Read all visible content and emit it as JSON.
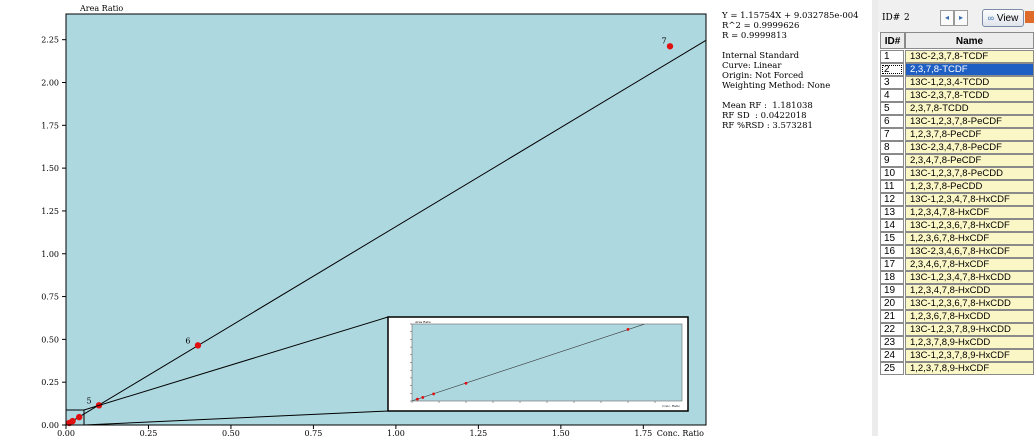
{
  "chart_data": {
    "type": "scatter",
    "ylabel": "Area Ratio",
    "xlabel": "Conc. Ratio",
    "xlim": [
      0,
      1.94
    ],
    "ylim": [
      0,
      2.4
    ],
    "xticks": [
      "0.00",
      "0.25",
      "0.50",
      "0.75",
      "1.00",
      "1.25",
      "1.50",
      "1.75"
    ],
    "yticks": [
      "0.00",
      "0.25",
      "0.50",
      "0.75",
      "1.00",
      "1.25",
      "1.50",
      "1.75",
      "2.00",
      "2.25"
    ],
    "grid": false,
    "background": "#add8e0",
    "fit_line": {
      "slope": 1.157542,
      "intercept": 0.0009032785,
      "color": "#000000"
    },
    "points": [
      {
        "label": "",
        "x": 0.01,
        "y": 0.012
      },
      {
        "label": "",
        "x": 0.02,
        "y": 0.023
      },
      {
        "label": "",
        "x": 0.04,
        "y": 0.046
      },
      {
        "label": "5",
        "x": 0.1,
        "y": 0.115
      },
      {
        "label": "6",
        "x": 0.4,
        "y": 0.465
      },
      {
        "label": "7",
        "x": 2.0,
        "y": 2.32
      }
    ],
    "point_color": "#e01010",
    "inset": {
      "ylabel": "Area Ratio",
      "xlabel": "Conc. Ratio",
      "xlim": [
        0,
        0.5
      ],
      "ylim": [
        0,
        0.5
      ],
      "points": [
        {
          "x": 0.01,
          "y": 0.012
        },
        {
          "x": 0.02,
          "y": 0.023
        },
        {
          "x": 0.04,
          "y": 0.046
        },
        {
          "x": 0.1,
          "y": 0.115
        },
        {
          "x": 0.4,
          "y": 0.465
        }
      ]
    }
  },
  "stats": {
    "equation": "Y = 1.15754X + 9.032785e-004",
    "r2": "R^2 = 0.9999626",
    "r": "R = 0.9999813",
    "internal_standard": "Internal Standard",
    "curve": "Curve: Linear",
    "origin": "Origin: Not Forced",
    "weighting": "Weighting Method: None",
    "mean_rf": "Mean RF :  1.181038",
    "rf_sd": "RF SD  : 0.0422018",
    "rf_rsd": "RF %RSD : 3.573281"
  },
  "toolbar": {
    "id_label": "ID#",
    "id_value": "2",
    "prev_label": "◂",
    "next_label": "▸",
    "view_label": "View"
  },
  "table": {
    "columns": [
      "ID#",
      "Name"
    ],
    "selected_index": 1,
    "rows": [
      {
        "id": "1",
        "name": "13C-2,3,7,8-TCDF"
      },
      {
        "id": "2",
        "name": "2,3,7,8-TCDF"
      },
      {
        "id": "3",
        "name": "13C-1,2,3,4-TCDD"
      },
      {
        "id": "4",
        "name": "13C-2,3,7,8-TCDD"
      },
      {
        "id": "5",
        "name": "2,3,7,8-TCDD"
      },
      {
        "id": "6",
        "name": "13C-1,2,3,7,8-PeCDF"
      },
      {
        "id": "7",
        "name": "1,2,3,7,8-PeCDF"
      },
      {
        "id": "8",
        "name": "13C-2,3,4,7,8-PeCDF"
      },
      {
        "id": "9",
        "name": "2,3,4,7,8-PeCDF"
      },
      {
        "id": "10",
        "name": "13C-1,2,3,7,8-PeCDD"
      },
      {
        "id": "11",
        "name": "1,2,3,7,8-PeCDD"
      },
      {
        "id": "12",
        "name": "13C-1,2,3,4,7,8-HxCDF"
      },
      {
        "id": "13",
        "name": "1,2,3,4,7,8-HxCDF"
      },
      {
        "id": "14",
        "name": "13C-1,2,3,6,7,8-HxCDF"
      },
      {
        "id": "15",
        "name": "1,2,3,6,7,8-HxCDF"
      },
      {
        "id": "16",
        "name": "13C-2,3,4,6,7,8-HxCDF"
      },
      {
        "id": "17",
        "name": "2,3,4,6,7,8-HxCDF"
      },
      {
        "id": "18",
        "name": "13C-1,2,3,4,7,8-HxCDD"
      },
      {
        "id": "19",
        "name": "1,2,3,4,7,8-HxCDD"
      },
      {
        "id": "20",
        "name": "13C-1,2,3,6,7,8-HxCDD"
      },
      {
        "id": "21",
        "name": "1,2,3,6,7,8-HxCDD"
      },
      {
        "id": "22",
        "name": "13C-1,2,3,7,8,9-HxCDD"
      },
      {
        "id": "23",
        "name": "1,2,3,7,8,9-HxCDD"
      },
      {
        "id": "24",
        "name": "13C-1,2,3,7,8,9-HxCDF"
      },
      {
        "id": "25",
        "name": "1,2,3,7,8,9-HxCDF"
      }
    ]
  }
}
